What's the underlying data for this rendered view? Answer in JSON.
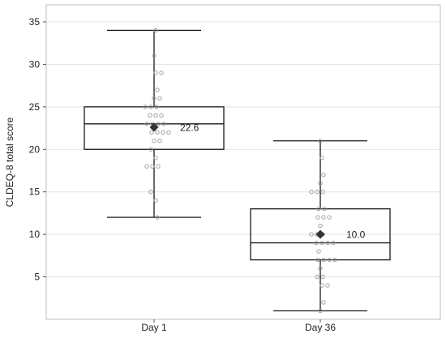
{
  "chart_data": {
    "type": "box",
    "xlabel": "",
    "ylabel": "CLDEQ-8 total score",
    "ylim": [
      0,
      37
    ],
    "yticks": [
      5,
      10,
      15,
      20,
      25,
      30,
      35
    ],
    "grid": true,
    "categories": [
      "Day 1",
      "Day 36"
    ],
    "boxes": [
      {
        "category": "Day 1",
        "whisker_low": 12,
        "q1": 20,
        "median": 23,
        "q3": 25,
        "whisker_high": 34,
        "mean": 22.6,
        "mean_label": "22.6",
        "points": [
          34,
          31,
          29,
          29,
          27,
          26,
          26,
          25,
          25,
          25,
          24,
          24,
          24,
          23,
          23,
          23,
          23,
          22,
          22,
          22,
          22,
          21,
          21,
          20,
          19,
          18,
          18,
          18,
          15,
          14,
          12
        ]
      },
      {
        "category": "Day 36",
        "whisker_low": 1,
        "q1": 7,
        "median": 9,
        "q3": 13,
        "whisker_high": 21,
        "mean": 10.0,
        "mean_label": "10.0",
        "points": [
          21,
          19,
          17,
          16,
          15,
          15,
          15,
          13,
          13,
          12,
          12,
          12,
          11,
          10,
          10,
          10,
          9,
          9,
          9,
          9,
          8,
          7,
          7,
          7,
          7,
          6,
          5,
          5,
          4,
          4,
          2,
          1
        ]
      }
    ],
    "colors": {
      "box": "#1a1a1a",
      "points": "#9a9a9a",
      "mean_marker": "#333333",
      "grid": "#e3e3e3",
      "frame": "#bdbdbd"
    }
  }
}
